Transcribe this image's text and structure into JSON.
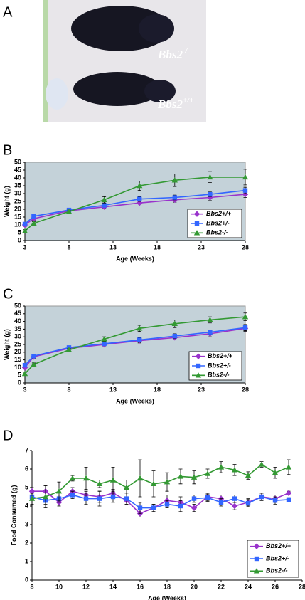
{
  "panel_labels": [
    "A",
    "B",
    "C",
    "D"
  ],
  "photo": {
    "labels": [
      {
        "base": "Bbs2",
        "sup": "-/-"
      },
      {
        "base": "Bbs2",
        "sup": "+/+"
      }
    ]
  },
  "chart_data": [
    {
      "type": "line",
      "x_label": "Age (Weeks)",
      "y_label": "Weight (g)",
      "x": [
        3,
        4,
        8,
        12,
        16,
        20,
        24,
        28
      ],
      "xlim": [
        3,
        28
      ],
      "xticks": [
        3,
        8,
        13,
        18,
        23,
        28
      ],
      "ylim": [
        0,
        50
      ],
      "yticks": [
        0,
        5,
        10,
        15,
        20,
        25,
        30,
        35,
        40,
        45,
        50
      ],
      "plot_bg": "#c4d2d9",
      "legend": "lower right",
      "series": [
        {
          "name": "Bbs2+/+",
          "color": "#9933cc",
          "marker": "diamond",
          "values": [
            10,
            14,
            19,
            21.5,
            24,
            26,
            27.5,
            29.5
          ],
          "errors": [
            1,
            1,
            1,
            1,
            2,
            1.5,
            2,
            2
          ]
        },
        {
          "name": "Bbs2+/-",
          "color": "#3366ff",
          "marker": "square",
          "values": [
            10.5,
            15.5,
            19.5,
            22.5,
            26.5,
            27.5,
            29.5,
            32
          ],
          "errors": [
            1,
            1,
            1,
            1,
            1.5,
            1.5,
            1.5,
            2
          ]
        },
        {
          "name": "Bbs2-/-",
          "color": "#339933",
          "marker": "triangle",
          "values": [
            6,
            11,
            18.5,
            26,
            35,
            38.5,
            40.5,
            40.5
          ],
          "errors": [
            1,
            1,
            1,
            2,
            3,
            4,
            3.5,
            5
          ]
        }
      ]
    },
    {
      "type": "line",
      "x_label": "Age (Weeks)",
      "y_label": "Weight (g)",
      "x": [
        3,
        4,
        8,
        12,
        16,
        20,
        24,
        28
      ],
      "xlim": [
        3,
        28
      ],
      "xticks": [
        3,
        8,
        13,
        18,
        23,
        28
      ],
      "ylim": [
        0,
        50
      ],
      "yticks": [
        0,
        5,
        10,
        15,
        20,
        25,
        30,
        35,
        40,
        45,
        50
      ],
      "plot_bg": "#c4d2d9",
      "legend": "lower right",
      "series": [
        {
          "name": "Bbs2+/+",
          "color": "#9933cc",
          "marker": "diamond",
          "values": [
            10,
            17,
            22.5,
            25,
            27.5,
            29.5,
            32,
            35.5
          ],
          "errors": [
            1,
            1,
            1,
            1,
            1.5,
            1.5,
            2,
            2
          ]
        },
        {
          "name": "Bbs2+/-",
          "color": "#3366ff",
          "marker": "square",
          "values": [
            11.5,
            17.5,
            23,
            25.5,
            28,
            30.5,
            33,
            36
          ],
          "errors": [
            1,
            1,
            1,
            1,
            1.5,
            1.5,
            1.5,
            2
          ]
        },
        {
          "name": "Bbs2-/-",
          "color": "#339933",
          "marker": "triangle",
          "values": [
            6,
            12,
            21.5,
            28.5,
            35.5,
            38.5,
            41,
            43
          ],
          "errors": [
            1,
            1,
            1,
            1.5,
            2,
            2.5,
            2,
            2.5
          ]
        }
      ]
    },
    {
      "type": "line",
      "x_label": "Age (Weeks)",
      "y_label": "Food Consumed (g)",
      "x": [
        8,
        9,
        10,
        11,
        12,
        13,
        14,
        15,
        16,
        17,
        18,
        19,
        20,
        21,
        22,
        23,
        24,
        25,
        26,
        27
      ],
      "xlim": [
        8,
        28
      ],
      "xticks": [
        8,
        10,
        12,
        14,
        16,
        18,
        20,
        22,
        24,
        26,
        28
      ],
      "ylim": [
        0,
        7
      ],
      "yticks": [
        0,
        1,
        2,
        3,
        4,
        5,
        6,
        7
      ],
      "plot_bg": "#ffffff",
      "legend": "lower right",
      "series": [
        {
          "name": "Bbs2+/+",
          "color": "#9933cc",
          "marker": "diamond",
          "values": [
            4.8,
            4.8,
            4.2,
            4.8,
            4.6,
            4.5,
            4.7,
            4.3,
            3.6,
            3.9,
            4.3,
            4.2,
            3.9,
            4.5,
            4.4,
            4.0,
            4.2,
            4.5,
            4.4,
            4.7
          ],
          "errors": [
            0.2,
            0.3,
            0.2,
            0.2,
            0.2,
            0.3,
            0.2,
            0.2,
            0.2,
            0.2,
            0.3,
            0.3,
            0.2,
            0.2,
            0.2,
            0.2,
            0.2,
            0.2,
            0.2,
            0.1
          ]
        },
        {
          "name": "Bbs2+/-",
          "color": "#3366ff",
          "marker": "square",
          "values": [
            4.5,
            4.3,
            4.4,
            4.6,
            4.4,
            4.4,
            4.5,
            4.4,
            3.9,
            3.9,
            4.1,
            4.0,
            4.4,
            4.45,
            4.2,
            4.4,
            4.15,
            4.5,
            4.3,
            4.35
          ],
          "errors": [
            0.2,
            0.2,
            0.2,
            0.2,
            0.3,
            0.4,
            0.3,
            0.3,
            0.3,
            0.2,
            0.2,
            0.3,
            0.2,
            0.2,
            0.2,
            0.2,
            0.2,
            0.2,
            0.2,
            0.1
          ]
        },
        {
          "name": "Bbs2-/-",
          "color": "#339933",
          "marker": "triangle",
          "values": [
            4.4,
            4.5,
            4.8,
            5.5,
            5.5,
            5.2,
            5.4,
            5.0,
            5.5,
            5.2,
            5.3,
            5.6,
            5.55,
            5.75,
            6.1,
            5.95,
            5.65,
            6.25,
            5.8,
            6.1
          ],
          "errors": [
            0.3,
            0.6,
            0.5,
            0.15,
            0.6,
            0.2,
            0.7,
            0.4,
            1.0,
            0.7,
            0.5,
            0.4,
            0.35,
            0.25,
            0.3,
            0.3,
            0.2,
            0.15,
            0.3,
            0.4
          ]
        }
      ]
    }
  ]
}
